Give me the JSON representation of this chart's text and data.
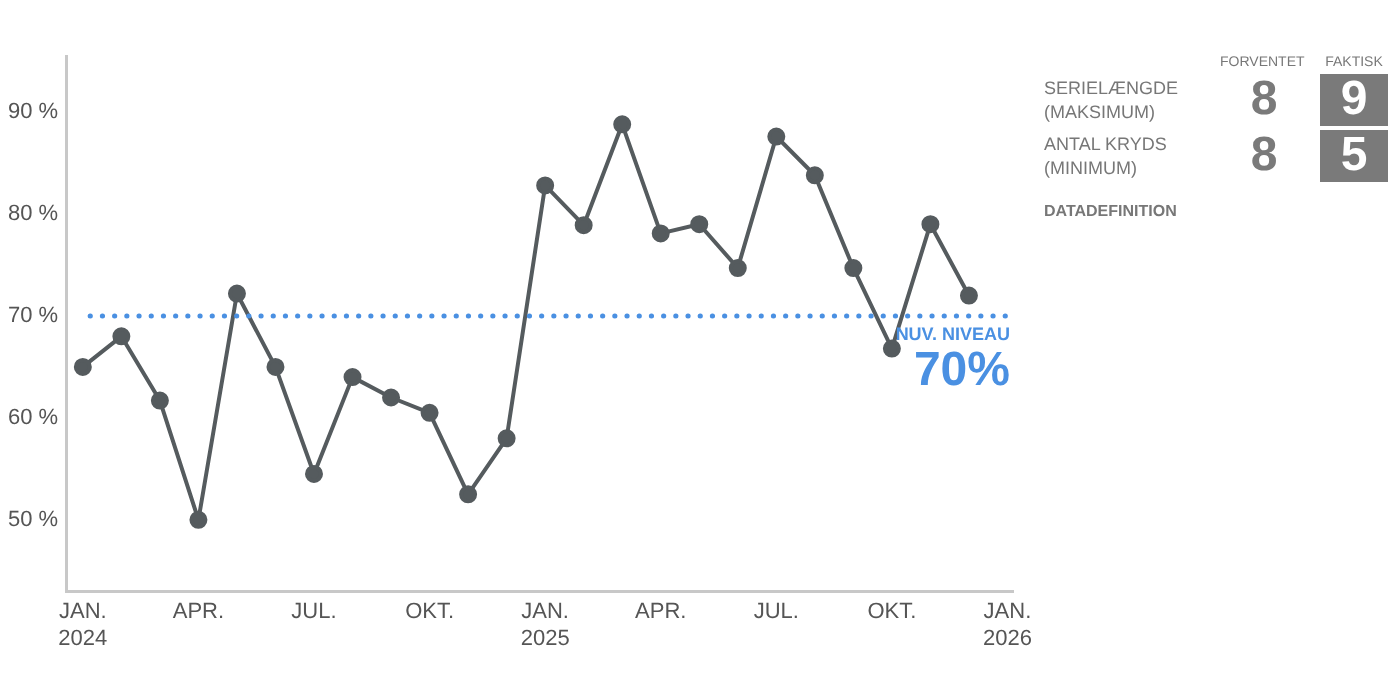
{
  "chart_data": [
    {
      "type": "line",
      "x": [
        "2024-01",
        "2024-02",
        "2024-03",
        "2024-04",
        "2024-05",
        "2024-06",
        "2024-07",
        "2024-08",
        "2024-09",
        "2024-10",
        "2024-11",
        "2024-12",
        "2025-01",
        "2025-02",
        "2025-03",
        "2025-04",
        "2025-05",
        "2025-06",
        "2025-07",
        "2025-08",
        "2025-09",
        "2025-10",
        "2025-11",
        "2025-12"
      ],
      "series": [
        {
          "color": "#555b5e",
          "values": [
            65,
            68,
            61.7,
            50,
            72.2,
            65,
            54.5,
            64,
            62,
            60.5,
            52.5,
            58,
            82.8,
            78.9,
            88.8,
            78.1,
            79,
            74.7,
            87.6,
            83.8,
            74.7,
            66.8,
            79,
            72
          ]
        }
      ],
      "xlim": [
        "2023-12-18",
        "2026-01-05"
      ],
      "xticks": [
        {
          "value": "2024-01",
          "label": "JAN.\n2024"
        },
        {
          "value": "2024-04",
          "label": "APR."
        },
        {
          "value": "2024-07",
          "label": "JUL."
        },
        {
          "value": "2024-10",
          "label": "OKT."
        },
        {
          "value": "2025-01",
          "label": "JAN.\n2025"
        },
        {
          "value": "2025-04",
          "label": "APR."
        },
        {
          "value": "2025-07",
          "label": "JUL."
        },
        {
          "value": "2025-10",
          "label": "OKT."
        },
        {
          "value": "2026-01",
          "label": "JAN.\n2026"
        }
      ],
      "ylim": [
        43,
        95.5
      ],
      "yticks": [
        {
          "value": 50,
          "label": "50 %"
        },
        {
          "value": 60,
          "label": "60 %"
        },
        {
          "value": 70,
          "label": "70 %"
        },
        {
          "value": 80,
          "label": "80 %"
        },
        {
          "value": 90,
          "label": "90 %"
        }
      ],
      "ref_lines": [
        {
          "axis": "y",
          "value": 70,
          "label": "NUV. NIVEAU",
          "color": "#4a90e2",
          "line_style": "dotted"
        }
      ],
      "annotations": [
        {
          "text": "70%",
          "x": "2026-01",
          "y": 70
        }
      ],
      "marker": "circle",
      "grid": false,
      "legend": false
    },
    {
      "type": "other",
      "categories": [
        "SERIELÆNGDE\n(MAKSIMUM)",
        "ANTAL KRYDS\n(MINIMUM)"
      ],
      "series": [
        {
          "name": "FORVENTET",
          "color": "#7a7a7a",
          "values": [
            8,
            8
          ]
        },
        {
          "name": "FAKTISK",
          "color": "#7a7a7a",
          "values": [
            9,
            5
          ]
        }
      ],
      "data_labels": true,
      "annotations": [
        "DATADEFINITION"
      ]
    }
  ]
}
